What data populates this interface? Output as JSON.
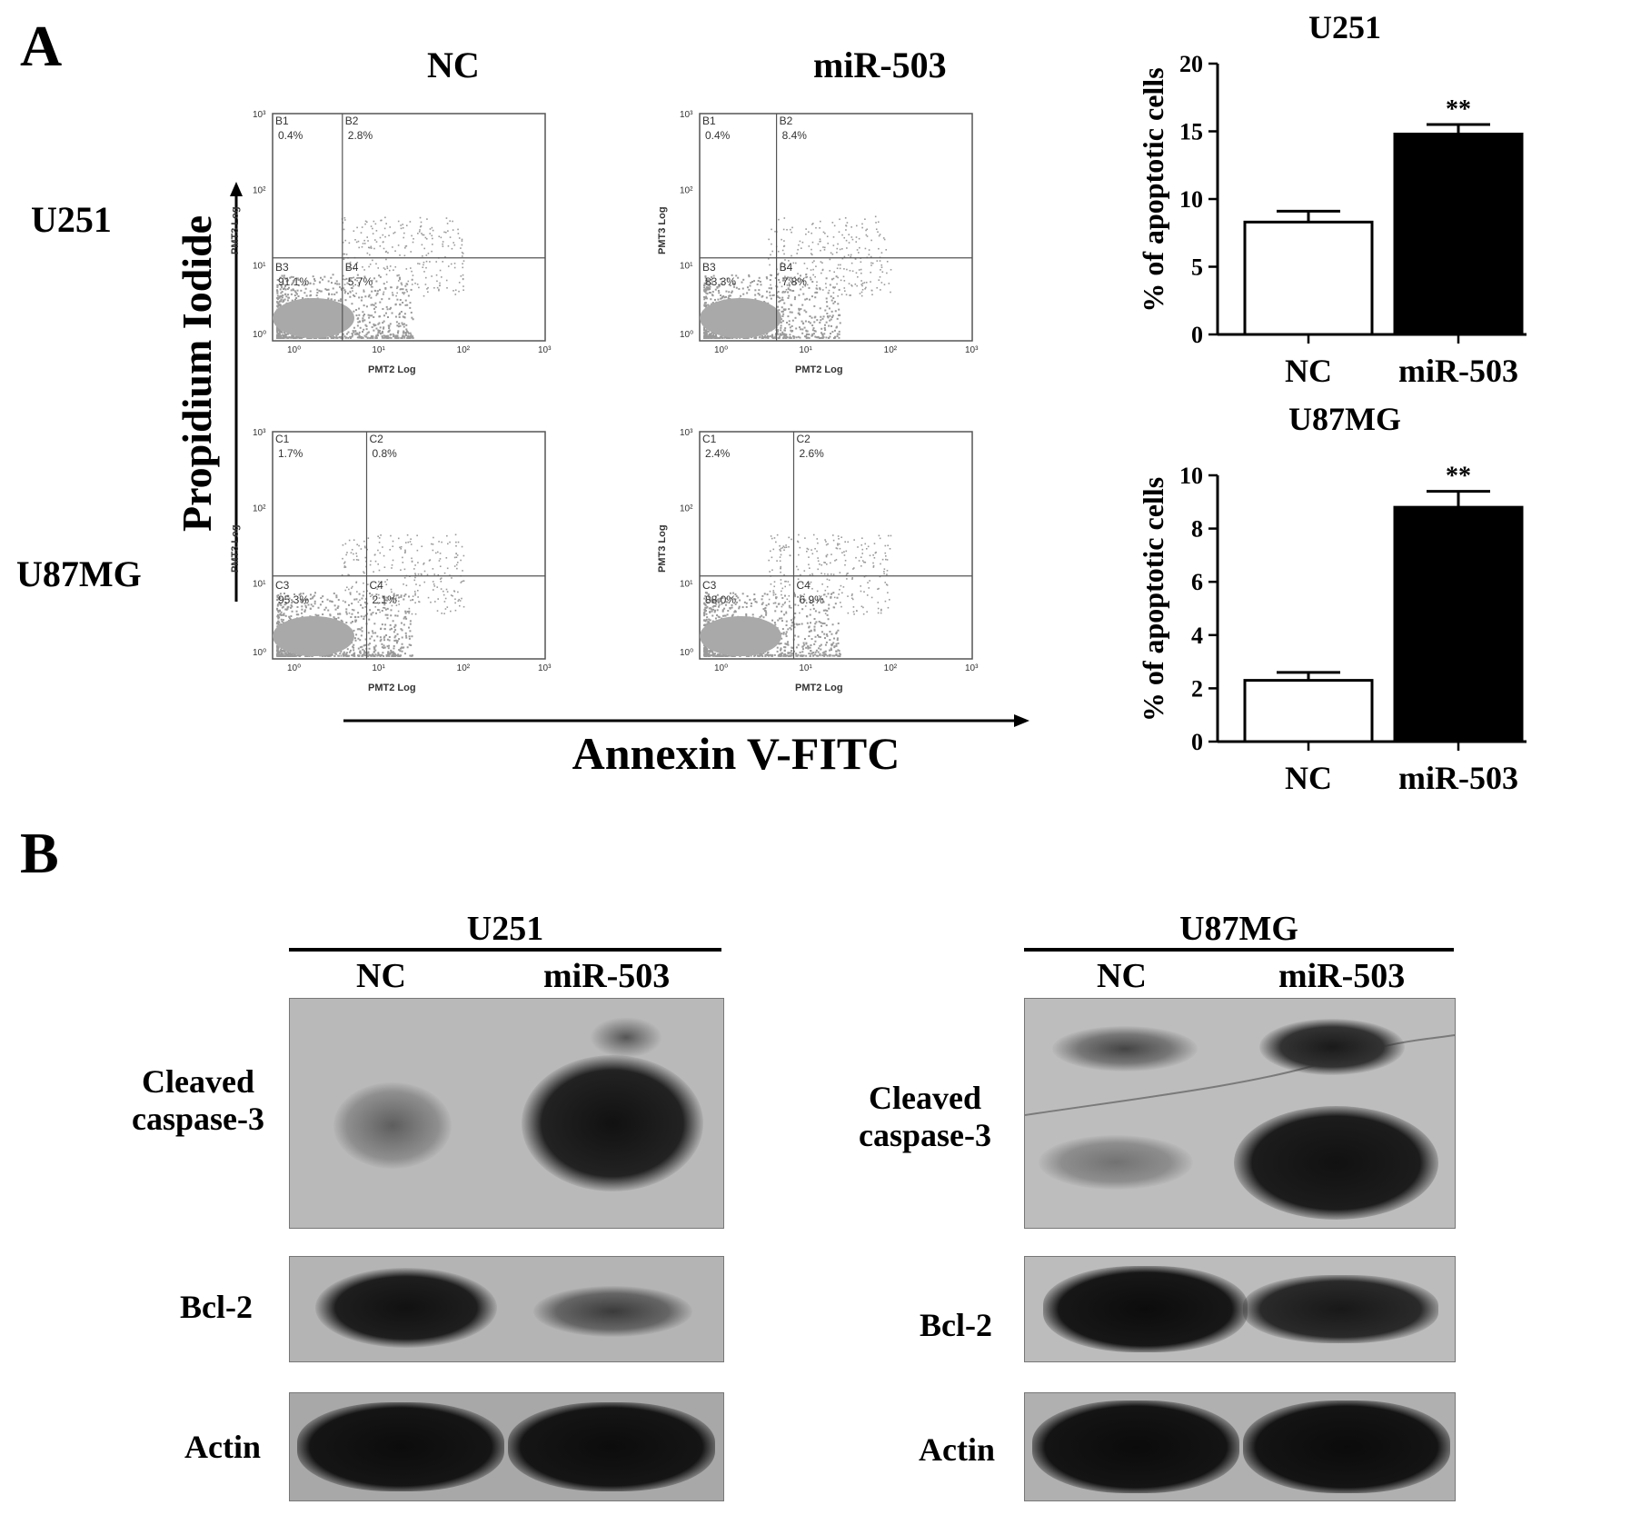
{
  "panel_a": {
    "letter": "A",
    "col_headers": [
      "NC",
      "miR-503"
    ],
    "row_labels": [
      "U251",
      "U87MG"
    ],
    "y_axis_title": "Propidium Iodide",
    "x_axis_title": "Annexin V-FITC",
    "flow_plots": [
      {
        "row": "U251",
        "col": "NC",
        "prefix": "B",
        "quadrants": [
          {
            "id": "B1",
            "pct": "0.4%"
          },
          {
            "id": "B2",
            "pct": "2.8%"
          },
          {
            "id": "B3",
            "pct": "91.1%"
          },
          {
            "id": "B4",
            "pct": "5.7%"
          }
        ]
      },
      {
        "row": "U251",
        "col": "miR-503",
        "prefix": "B",
        "quadrants": [
          {
            "id": "B1",
            "pct": "0.4%"
          },
          {
            "id": "B2",
            "pct": "8.4%"
          },
          {
            "id": "B3",
            "pct": "83.3%"
          },
          {
            "id": "B4",
            "pct": "7.8%"
          }
        ]
      },
      {
        "row": "U87MG",
        "col": "NC",
        "prefix": "C",
        "quadrants": [
          {
            "id": "C1",
            "pct": "1.7%"
          },
          {
            "id": "C2",
            "pct": "0.8%"
          },
          {
            "id": "C3",
            "pct": "95.3%"
          },
          {
            "id": "C4",
            "pct": "2.1%"
          }
        ]
      },
      {
        "row": "U87MG",
        "col": "miR-503",
        "prefix": "C",
        "quadrants": [
          {
            "id": "C1",
            "pct": "2.4%"
          },
          {
            "id": "C2",
            "pct": "2.6%"
          },
          {
            "id": "C3",
            "pct": "88.0%"
          },
          {
            "id": "C4",
            "pct": "6.9%"
          }
        ]
      }
    ],
    "flow_axis": {
      "xlabel": "PMT2 Log",
      "ylabel": "PMT3 Log",
      "ticks": [
        "10⁰",
        "10¹",
        "10²",
        "10³"
      ]
    }
  },
  "chart_data": [
    {
      "type": "bar",
      "title": "U251",
      "categories": [
        "NC",
        "miR-503"
      ],
      "values": [
        8.3,
        14.8
      ],
      "errors": [
        0.8,
        0.7
      ],
      "significance": [
        "",
        "**"
      ],
      "ylabel": "% of apoptotic cells",
      "ylim": [
        0,
        20
      ],
      "yticks": [
        "0",
        "5",
        "10",
        "15",
        "20"
      ],
      "colors": [
        "#ffffff",
        "#000000"
      ]
    },
    {
      "type": "bar",
      "title": "U87MG",
      "categories": [
        "NC",
        "miR-503"
      ],
      "values": [
        2.3,
        8.8
      ],
      "errors": [
        0.3,
        0.6
      ],
      "significance": [
        "",
        "**"
      ],
      "ylabel": "% of apoptotic cells",
      "ylim": [
        0,
        10
      ],
      "yticks": [
        "0",
        "2",
        "4",
        "6",
        "8",
        "10"
      ],
      "colors": [
        "#ffffff",
        "#000000"
      ]
    }
  ],
  "panel_b": {
    "letter": "B",
    "blots": [
      {
        "cell_line": "U251",
        "lanes": [
          "NC",
          "miR-503"
        ],
        "proteins": [
          "Cleaved caspase-3",
          "Bcl-2",
          "Actin"
        ]
      },
      {
        "cell_line": "U87MG",
        "lanes": [
          "NC",
          "miR-503"
        ],
        "proteins": [
          "Cleaved caspase-3",
          "Bcl-2",
          "Actin"
        ]
      }
    ],
    "cleaved_label_line1": "Cleaved",
    "cleaved_label_line2": "caspase-3"
  }
}
